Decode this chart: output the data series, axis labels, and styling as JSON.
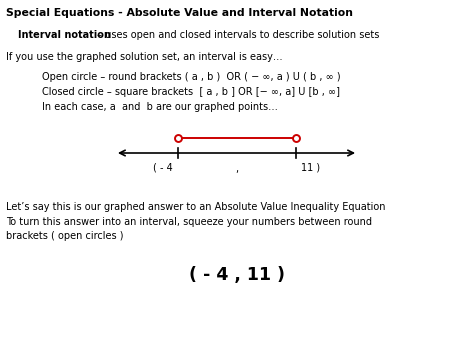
{
  "title": "Special Equations - Absolute Value and Interval Notation",
  "bg_color": "#ffffff",
  "text_color": "#000000",
  "line1_bold": "Interval notation",
  "line1_rest": " – uses open and closed intervals to describe solution sets",
  "line2": "If you use the graphed solution set, an interval is easy…",
  "line3": "Open circle – round brackets ( a , b )  OR ( − ∞, a ) U ( b , ∞ )",
  "line4": "Closed circle – square brackets  [ a , b ] OR [− ∞, a] U [b , ∞]",
  "line5": "In each case, a  and  b are our graphed points…",
  "num_line_label_left": "( - 4",
  "num_line_label_comma": ",",
  "num_line_label_right": "11 )",
  "line6": "Let’s say this is our graphed answer to an Absolute Value Inequality Equation",
  "line7a": "To turn this answer into an interval, squeeze your numbers between round",
  "line7b": "brackets ( open circles )",
  "answer": "( - 4 , 11 )",
  "red_color": "#cc0000",
  "number_line_color": "#000000",
  "title_fontsize": 7.8,
  "body_fontsize": 7.0,
  "answer_fontsize": 12.5
}
